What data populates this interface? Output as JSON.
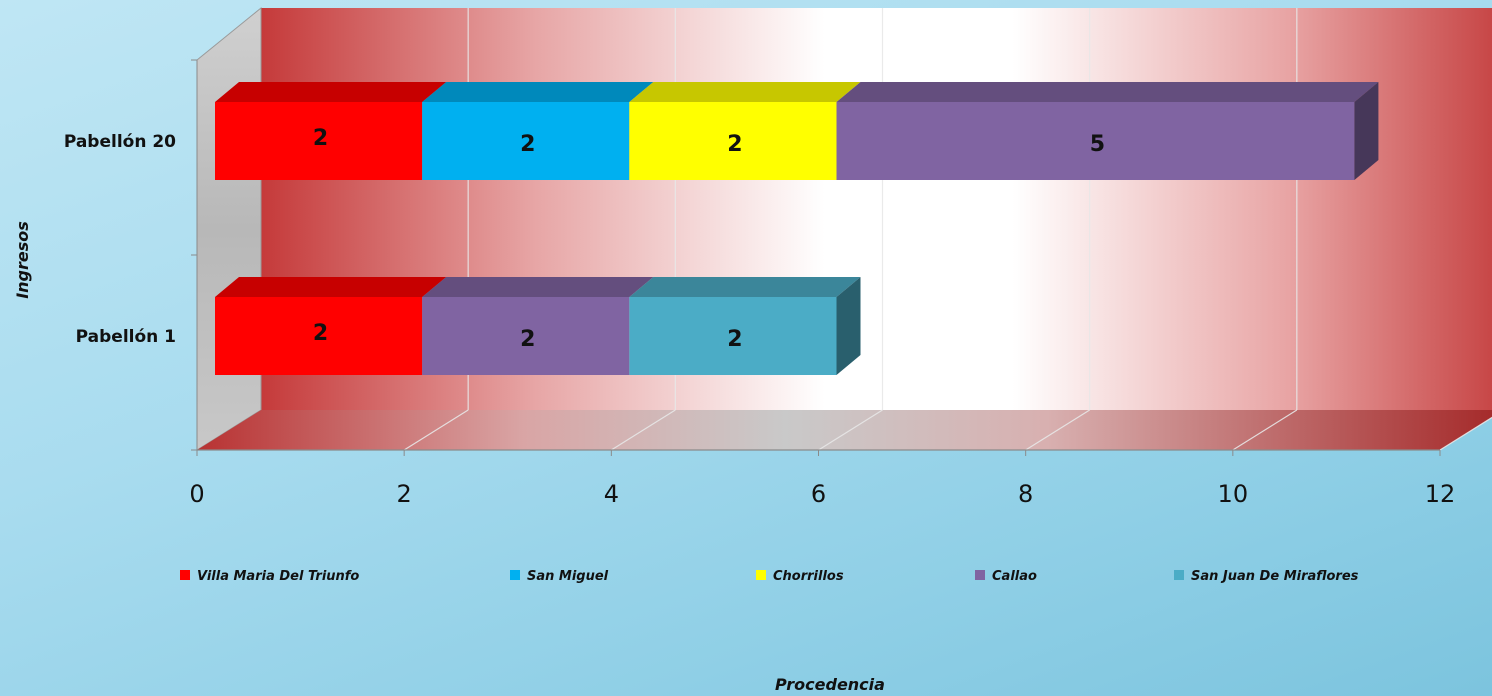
{
  "chart_data": {
    "type": "bar",
    "orientation": "horizontal",
    "stacked": true,
    "three_d": true,
    "categories": [
      "Pabellón 1",
      "Pabellón 20"
    ],
    "series": [
      {
        "name": "Villa Maria Del Triunfo",
        "values": [
          2,
          2
        ],
        "color": "#ff0000"
      },
      {
        "name": "San Miguel",
        "values": [
          0,
          2
        ],
        "color": "#00b0f0"
      },
      {
        "name": "Chorrillos",
        "values": [
          0,
          2
        ],
        "color": "#ffff00"
      },
      {
        "name": "Callao",
        "values": [
          2,
          5
        ],
        "color": "#8064a2"
      },
      {
        "name": "San Juan De Miraflores",
        "values": [
          2,
          0
        ],
        "color": "#4bacc6"
      }
    ],
    "xlabel": "Procedencia",
    "ylabel": "Ingresos",
    "xlim": [
      0,
      12
    ],
    "xticks": [
      0,
      2,
      4,
      6,
      8,
      10,
      12
    ],
    "grid": true,
    "legend_position": "bottom",
    "data_labels": true
  }
}
